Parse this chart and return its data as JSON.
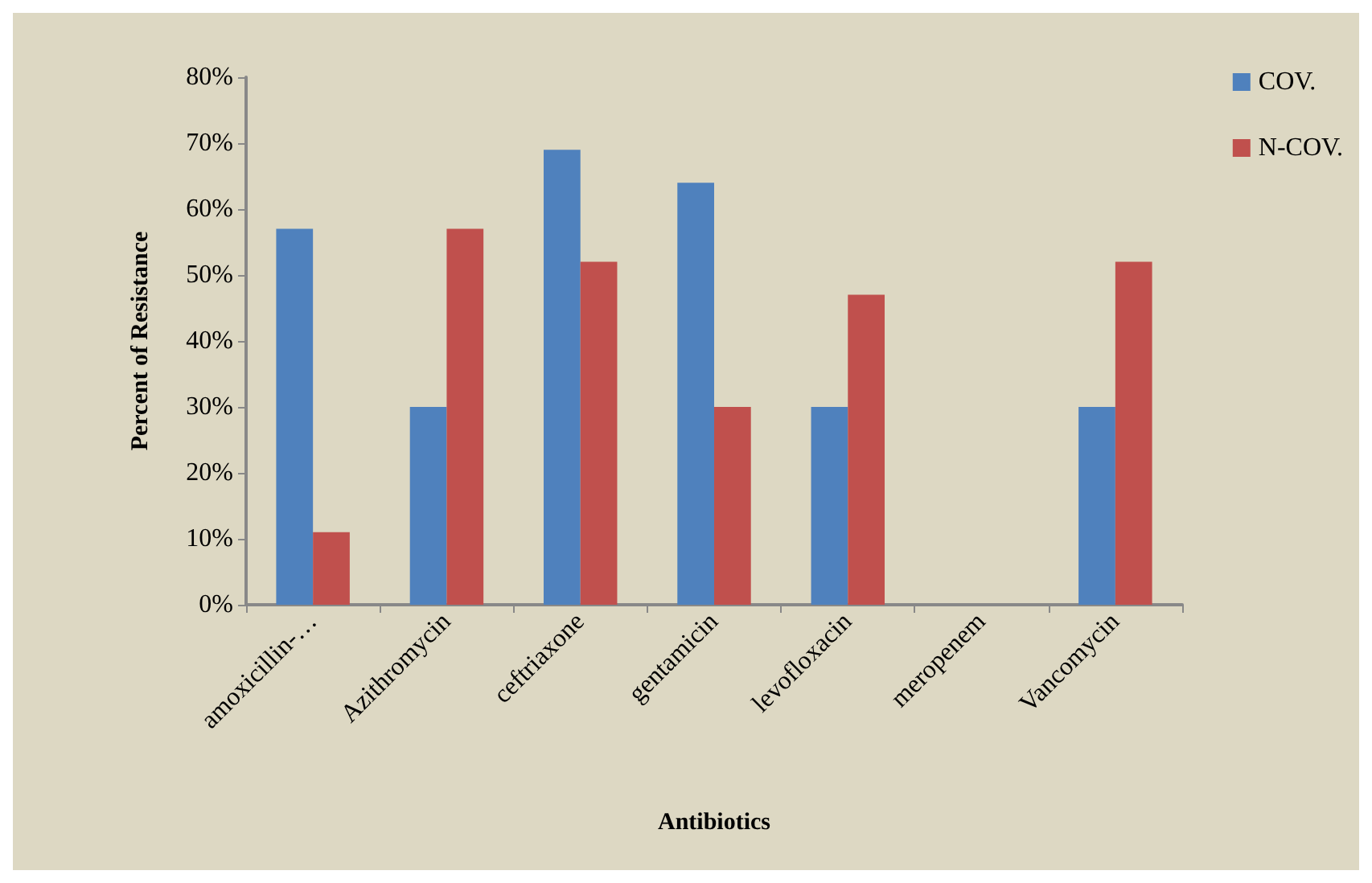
{
  "chart_data": {
    "type": "bar",
    "xlabel": "Antibiotics",
    "ylabel": "Percent of Resistance",
    "categories": [
      "amoxicillin-…",
      "Azithromycin",
      "ceftriaxone",
      "gentamicin",
      "levofloxacin",
      "meropenem",
      "Vancomycin"
    ],
    "series": [
      {
        "name": "COV.",
        "color": "#4f81bd",
        "values": [
          57,
          30,
          69,
          64,
          30,
          0,
          30
        ]
      },
      {
        "name": "N-COV.",
        "color": "#c0504d",
        "values": [
          11,
          57,
          52,
          30,
          47,
          0,
          52
        ]
      }
    ],
    "ylim": [
      0,
      80
    ],
    "yticks": [
      {
        "value": 0,
        "label": "0%"
      },
      {
        "value": 10,
        "label": "10%"
      },
      {
        "value": 20,
        "label": "20%"
      },
      {
        "value": 30,
        "label": "30%"
      },
      {
        "value": 40,
        "label": "40%"
      },
      {
        "value": 50,
        "label": "50%"
      },
      {
        "value": 60,
        "label": "60%"
      },
      {
        "value": 70,
        "label": "70%"
      },
      {
        "value": 80,
        "label": "80%"
      }
    ],
    "grid": false,
    "legend": "top right"
  }
}
